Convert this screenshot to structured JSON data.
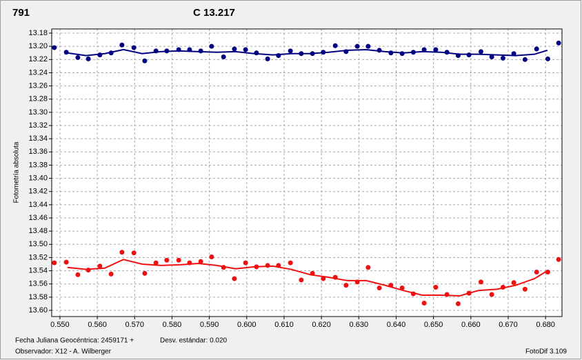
{
  "chart_data": {
    "type": "scatter",
    "title": "791",
    "title_color": "#ff0000",
    "subtitle": "C 13.217",
    "subtitle_color": "#000080",
    "ylabel": "Fotometría absoluta",
    "y_inverted": true,
    "grid": true,
    "xlim": [
      0.5478,
      0.6844
    ],
    "ylim": [
      13.1737,
      13.6094
    ],
    "xticks": [
      {
        "value": 0.55,
        "label": "0.550"
      },
      {
        "value": 0.56,
        "label": "0.560"
      },
      {
        "value": 0.57,
        "label": "0.570"
      },
      {
        "value": 0.58,
        "label": "0.580"
      },
      {
        "value": 0.59,
        "label": "0.590"
      },
      {
        "value": 0.6,
        "label": "0.600"
      },
      {
        "value": 0.61,
        "label": "0.610"
      },
      {
        "value": 0.62,
        "label": "0.620"
      },
      {
        "value": 0.63,
        "label": "0.630"
      },
      {
        "value": 0.64,
        "label": "0.640"
      },
      {
        "value": 0.65,
        "label": "0.650"
      },
      {
        "value": 0.66,
        "label": "0.660"
      },
      {
        "value": 0.67,
        "label": "0.670"
      },
      {
        "value": 0.68,
        "label": "0.680"
      }
    ],
    "yticks": [
      13.18,
      {
        "value": 13.2,
        "label": "13.20"
      },
      13.22,
      13.24,
      13.26,
      13.28,
      {
        "value": 13.3,
        "label": "13.30"
      },
      13.32,
      13.34,
      13.36,
      13.38,
      {
        "value": 13.4,
        "label": "13.40"
      },
      13.42,
      13.44,
      13.46,
      13.48,
      {
        "value": 13.5,
        "label": "13.50"
      },
      13.52,
      13.54,
      13.56,
      13.58,
      {
        "value": 13.6,
        "label": "13.60"
      }
    ],
    "series": [
      {
        "style": "markers",
        "color": "#000080",
        "x": [
          0.5485,
          0.5517,
          0.5548,
          0.5576,
          0.5607,
          0.5637,
          0.5666,
          0.5698,
          0.5727,
          0.5757,
          0.5786,
          0.5818,
          0.5847,
          0.5877,
          0.5906,
          0.5938,
          0.5967,
          0.5997,
          0.6026,
          0.6056,
          0.6085,
          0.6117,
          0.6146,
          0.6176,
          0.6205,
          0.6237,
          0.6266,
          0.6296,
          0.6325,
          0.6355,
          0.6386,
          0.6416,
          0.6446,
          0.6475,
          0.6506,
          0.6536,
          0.6566,
          0.6595,
          0.6627,
          0.6656,
          0.6686,
          0.6715,
          0.6745,
          0.6776,
          0.6806,
          0.6835
        ],
        "values": [
          13.202,
          13.209,
          13.217,
          13.219,
          13.213,
          13.21,
          13.198,
          13.202,
          13.222,
          13.207,
          13.207,
          13.205,
          13.205,
          13.207,
          13.2,
          13.216,
          13.204,
          13.205,
          13.21,
          13.219,
          13.214,
          13.207,
          13.211,
          13.211,
          13.209,
          13.199,
          13.208,
          13.2,
          13.2,
          13.206,
          13.21,
          13.211,
          13.209,
          13.205,
          13.205,
          13.209,
          13.214,
          13.213,
          13.208,
          13.216,
          13.218,
          13.211,
          13.22,
          13.204,
          13.219,
          13.195
        ]
      },
      {
        "style": "line",
        "color": "#000080",
        "x": [
          0.552,
          0.557,
          0.562,
          0.567,
          0.572,
          0.577,
          0.582,
          0.587,
          0.592,
          0.597,
          0.602,
          0.607,
          0.612,
          0.617,
          0.622,
          0.627,
          0.632,
          0.637,
          0.642,
          0.647,
          0.652,
          0.657,
          0.662,
          0.667,
          0.672,
          0.677,
          0.6805
        ],
        "values": [
          13.21,
          13.214,
          13.211,
          13.205,
          13.211,
          13.208,
          13.207,
          13.208,
          13.209,
          13.208,
          13.211,
          13.213,
          13.211,
          13.211,
          13.209,
          13.206,
          13.205,
          13.208,
          13.21,
          13.208,
          13.209,
          13.212,
          13.212,
          13.213,
          13.214,
          13.212,
          13.206
        ]
      },
      {
        "style": "markers",
        "color": "#ee1111",
        "x": [
          0.5485,
          0.5517,
          0.5548,
          0.5576,
          0.5607,
          0.5637,
          0.5666,
          0.5698,
          0.5727,
          0.5757,
          0.5786,
          0.5818,
          0.5847,
          0.5877,
          0.5906,
          0.5938,
          0.5967,
          0.5997,
          0.6026,
          0.6056,
          0.6085,
          0.6117,
          0.6146,
          0.6176,
          0.6205,
          0.6237,
          0.6266,
          0.6296,
          0.6325,
          0.6355,
          0.6386,
          0.6416,
          0.6446,
          0.6475,
          0.6506,
          0.6536,
          0.6566,
          0.6595,
          0.6627,
          0.6656,
          0.6686,
          0.6715,
          0.6745,
          0.6776,
          0.6806,
          0.6835
        ],
        "values": [
          13.528,
          13.527,
          13.546,
          13.539,
          13.533,
          13.545,
          13.512,
          13.513,
          13.544,
          13.528,
          13.524,
          13.524,
          13.528,
          13.526,
          13.519,
          13.535,
          13.552,
          13.528,
          13.534,
          13.532,
          13.532,
          13.528,
          13.554,
          13.544,
          13.552,
          13.55,
          13.562,
          13.557,
          13.535,
          13.566,
          13.562,
          13.566,
          13.575,
          13.589,
          13.565,
          13.576,
          13.59,
          13.574,
          13.557,
          13.576,
          13.565,
          13.558,
          13.568,
          13.542,
          13.542,
          13.523
        ]
      },
      {
        "style": "line",
        "color": "#ee1111",
        "x": [
          0.552,
          0.557,
          0.562,
          0.567,
          0.572,
          0.577,
          0.582,
          0.587,
          0.592,
          0.597,
          0.602,
          0.607,
          0.612,
          0.617,
          0.622,
          0.627,
          0.632,
          0.637,
          0.642,
          0.647,
          0.652,
          0.657,
          0.662,
          0.667,
          0.672,
          0.677,
          0.6805
        ],
        "values": [
          13.535,
          13.538,
          13.536,
          13.523,
          13.53,
          13.532,
          13.531,
          13.529,
          13.532,
          13.537,
          13.534,
          13.533,
          13.538,
          13.546,
          13.55,
          13.555,
          13.555,
          13.562,
          13.57,
          13.577,
          13.577,
          13.578,
          13.57,
          13.568,
          13.562,
          13.552,
          13.54
        ]
      }
    ],
    "footer": {
      "date": "Fecha Juliana Geocéntrica: 2459171 +",
      "stddev": "Desv. estándar: 0.020",
      "observer": "Observador: X12 - A. Wilberger",
      "software": "FotoDif 3.109"
    }
  }
}
